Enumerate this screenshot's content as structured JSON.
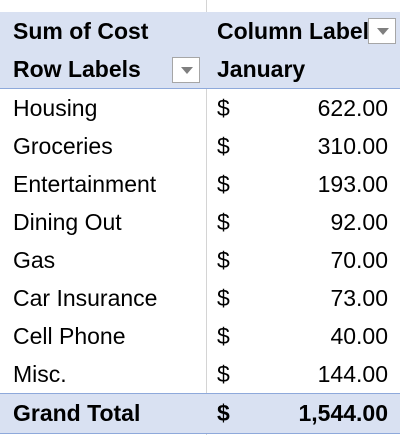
{
  "pivot": {
    "header1": {
      "values_label": "Sum of Cost",
      "column_labels": "Column Labels"
    },
    "header2": {
      "row_labels": "Row Labels",
      "column_value": "January"
    },
    "rows": [
      {
        "label": "Housing",
        "currency": "$",
        "amount": "622.00"
      },
      {
        "label": "Groceries",
        "currency": "$",
        "amount": "310.00"
      },
      {
        "label": "Entertainment",
        "currency": "$",
        "amount": "193.00"
      },
      {
        "label": "Dining Out",
        "currency": "$",
        "amount": "92.00"
      },
      {
        "label": "Gas",
        "currency": "$",
        "amount": "70.00"
      },
      {
        "label": "Car Insurance",
        "currency": "$",
        "amount": "73.00"
      },
      {
        "label": "Cell Phone",
        "currency": "$",
        "amount": "40.00"
      },
      {
        "label": "Misc.",
        "currency": "$",
        "amount": "144.00"
      }
    ],
    "grand_total": {
      "label": "Grand Total",
      "currency": "$",
      "amount": "1,544.00"
    }
  },
  "colors": {
    "header_fill": "#d9e1f2",
    "border": "#8ea9db",
    "gridline": "#d4d4d4"
  },
  "icons": {
    "column_filter": "chevron-down-icon",
    "row_filter": "chevron-down-icon"
  }
}
